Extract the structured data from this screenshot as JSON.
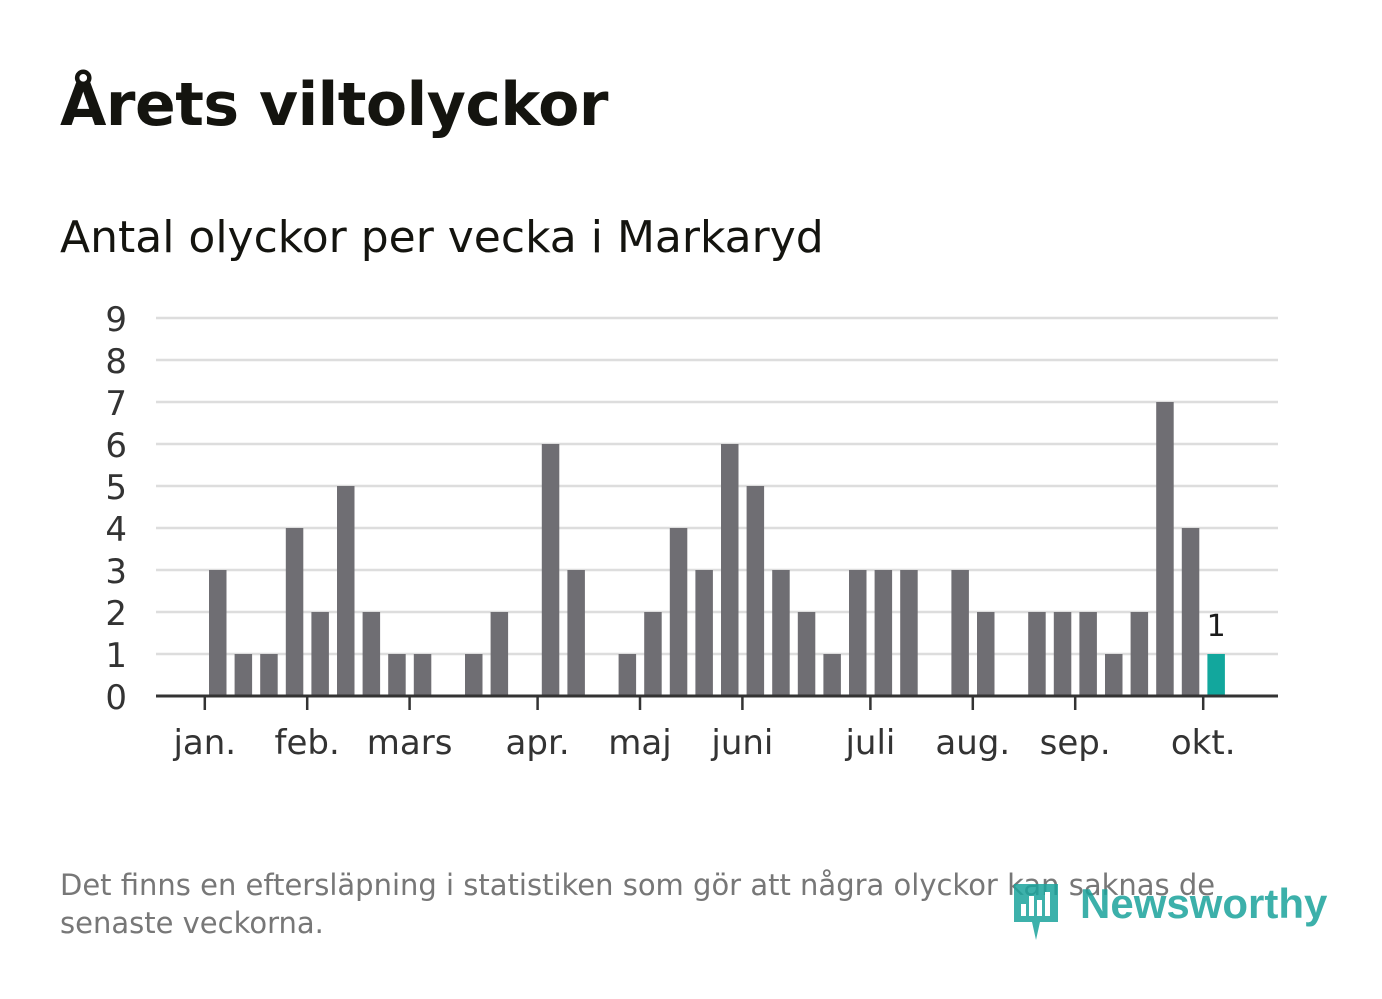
{
  "title": "Årets viltolyckor",
  "subtitle": "Antal olyckor per vecka i Markaryd",
  "footnote": "Det finns en eftersläpning i statistiken som gör att några olyckor kan saknas de senaste veckorna.",
  "brand": {
    "name": "Newsworthy",
    "icon": "newsworthy-logo-icon"
  },
  "colors": {
    "bar": "#6f6e73",
    "highlight": "#12a79d",
    "grid": "#dddddd",
    "axis": "#333333",
    "text": "#1a1a1a"
  },
  "chart_data": {
    "type": "bar",
    "title": "Antal olyckor per vecka i Markaryd",
    "xlabel": "",
    "ylabel": "",
    "ylim": [
      0,
      9
    ],
    "yticks": [
      "0",
      "1",
      "2",
      "3",
      "4",
      "5",
      "6",
      "7",
      "8",
      "9"
    ],
    "weeks": [
      1,
      2,
      3,
      4,
      5,
      6,
      7,
      8,
      9,
      10,
      11,
      12,
      13,
      14,
      15,
      16,
      17,
      18,
      19,
      20,
      21,
      22,
      23,
      24,
      25,
      26,
      27,
      28,
      29,
      30,
      31,
      32,
      33,
      34,
      35,
      36,
      37,
      38,
      39,
      40,
      41,
      42,
      43
    ],
    "values": [
      0,
      0,
      3,
      1,
      1,
      4,
      2,
      5,
      2,
      1,
      1,
      0,
      1,
      2,
      0,
      6,
      3,
      0,
      1,
      2,
      4,
      3,
      6,
      5,
      3,
      2,
      1,
      3,
      3,
      3,
      0,
      3,
      2,
      0,
      2,
      2,
      2,
      1,
      2,
      7,
      4,
      1,
      0
    ],
    "highlight_index": 41,
    "highlight_label": "1",
    "month_ticks": [
      {
        "label": "jan.",
        "week": 3.5
      },
      {
        "label": "feb.",
        "week": 7.5
      },
      {
        "label": "mars",
        "week": 11.5
      },
      {
        "label": "apr.",
        "week": 16.5
      },
      {
        "label": "maj",
        "week": 20.5
      },
      {
        "label": "juni",
        "week": 24.5
      },
      {
        "label": "juli",
        "week": 29.5
      },
      {
        "label": "aug.",
        "week": 33.5
      },
      {
        "label": "sep.",
        "week": 37.5
      },
      {
        "label": "okt.",
        "week": 42.5
      }
    ],
    "grid": true
  }
}
